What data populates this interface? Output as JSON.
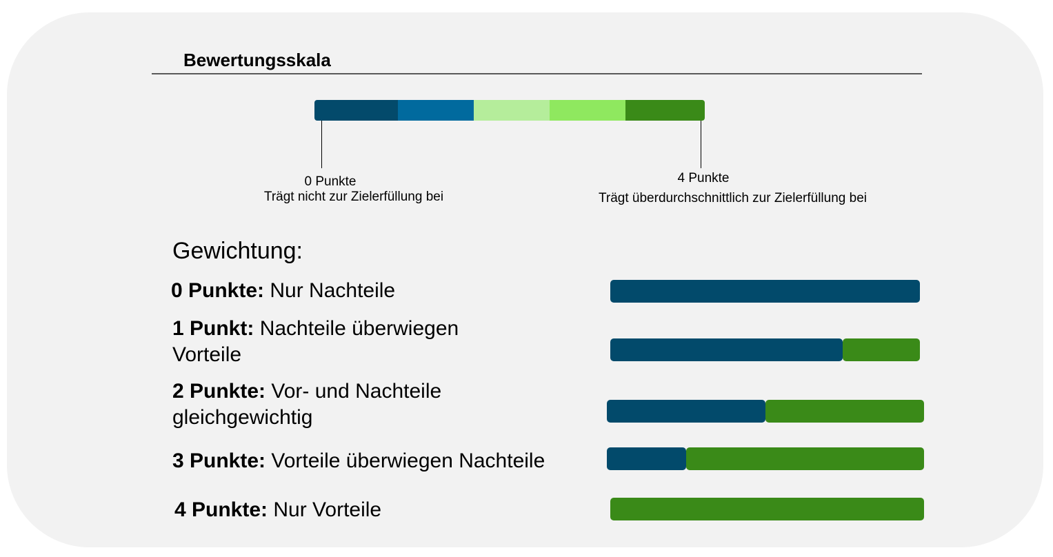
{
  "colors": {
    "background": "#f2f2f2",
    "nachteile": "#024a6b",
    "vorteile": "#3a8a18"
  },
  "scale": {
    "title": "Bewertungsskala",
    "segments": [
      {
        "color": "#034a6b"
      },
      {
        "color": "#016a9e"
      },
      {
        "color": "#b5ed9b"
      },
      {
        "color": "#8fe85f"
      },
      {
        "color": "#3a8a18"
      }
    ],
    "min_label": {
      "points": "0 Punkte",
      "description": "Trägt nicht zur Zielerfüllung bei"
    },
    "max_label": {
      "points": "4 Punkte",
      "description": "Trägt überdurchschnittlich zur Zielerfüllung bei"
    }
  },
  "weighting": {
    "heading": "Gewichtung:",
    "rows": [
      {
        "points": "0 Punkte:",
        "text_line1": " Nur Nachteile",
        "text_line2": "",
        "nachteile_share": 1.0,
        "vorteile_share": 0.0
      },
      {
        "points": "1 Punkt:",
        "text_line1": " Nachteile überwiegen",
        "text_line2": "Vorteile",
        "nachteile_share": 0.75,
        "vorteile_share": 0.25
      },
      {
        "points": "2 Punkte:",
        "text_line1": " Vor- und Nachteile",
        "text_line2": "gleichgewichtig",
        "nachteile_share": 0.5,
        "vorteile_share": 0.5
      },
      {
        "points": "3 Punkte:",
        "text_line1": " Vorteile überwiegen Nachteile",
        "text_line2": "",
        "nachteile_share": 0.25,
        "vorteile_share": 0.75
      },
      {
        "points": "4 Punkte:",
        "text_line1": " Nur Vorteile",
        "text_line2": "",
        "nachteile_share": 0.0,
        "vorteile_share": 1.0
      }
    ]
  }
}
